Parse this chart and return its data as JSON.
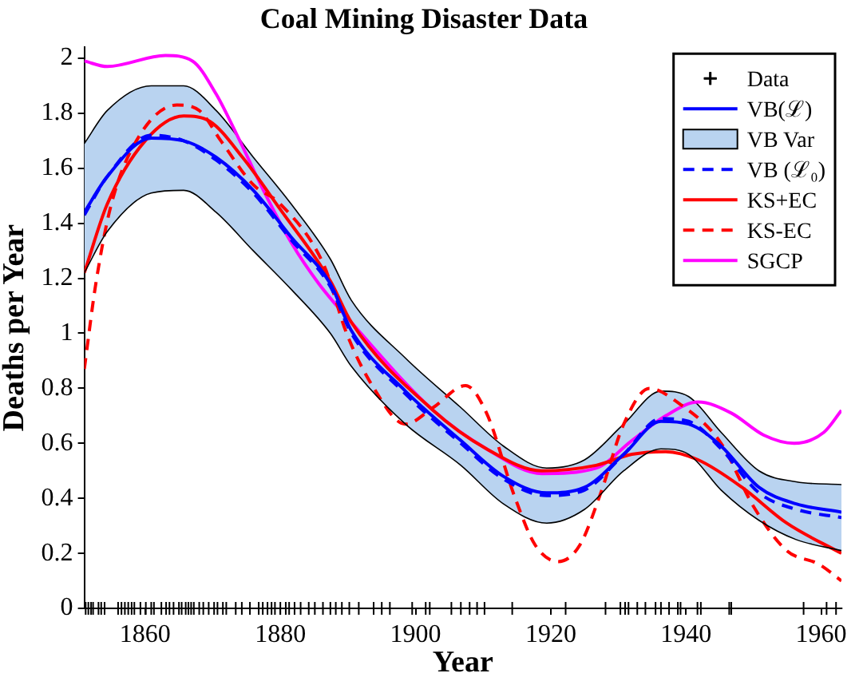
{
  "chart_data": {
    "type": "line",
    "title": "Coal Mining Disaster Data",
    "xlabel": "Year",
    "ylabel": "Deaths per Year",
    "xlim": [
      1851,
      1963
    ],
    "xticks": [
      1860,
      1880,
      1900,
      1920,
      1940,
      1960
    ],
    "ylim": [
      0,
      2.04
    ],
    "yticks": [
      0,
      0.2,
      0.4,
      0.6,
      0.8,
      1,
      1.2,
      1.4,
      1.6,
      1.8,
      2
    ],
    "legend": "top right",
    "grid": false,
    "series": [
      {
        "name": "Data",
        "type": "scatter",
        "marker": "cross",
        "color": "#000000",
        "x": [
          1851.2,
          1851.6,
          1852.0,
          1852.3,
          1853.1,
          1853.5,
          1854.0,
          1856.0,
          1856.5,
          1857.0,
          1857.5,
          1858.0,
          1858.4,
          1859.3,
          1860.1,
          1860.9,
          1861.3,
          1862.4,
          1863.1,
          1863.6,
          1864.2,
          1865.0,
          1865.4,
          1866.0,
          1866.4,
          1866.8,
          1867.2,
          1868.0,
          1868.6,
          1869.4,
          1870.2,
          1870.7,
          1871.5,
          1872.0,
          1873.4,
          1874.3,
          1875.5,
          1876.8,
          1877.4,
          1878.1,
          1878.7,
          1879.2,
          1880.0,
          1880.8,
          1881.3,
          1882.1,
          1883.0,
          1884.2,
          1885.1,
          1886.3,
          1887.4,
          1888.2,
          1889.1,
          1890.2,
          1891.6,
          1893.8,
          1895.0,
          1896.2,
          1899.5,
          1901.5,
          1902.1,
          1905.3,
          1906.7,
          1908.0,
          1909.1,
          1910.2,
          1914.3,
          1922.2,
          1928.1,
          1930.3,
          1931.0,
          1931.5,
          1932.8,
          1934.0,
          1935.5,
          1936.3,
          1937.5,
          1938.8,
          1939.2,
          1941.7,
          1942.2,
          1946.4,
          1946.7,
          1957.4,
          1960.8,
          1962.2
        ],
        "values": [
          0,
          0,
          0,
          0,
          0,
          0,
          0,
          0,
          0,
          0,
          0,
          0,
          0,
          0,
          0,
          0,
          0,
          0,
          0,
          0,
          0,
          0,
          0,
          0,
          0,
          0,
          0,
          0,
          0,
          0,
          0,
          0,
          0,
          0,
          0,
          0,
          0,
          0,
          0,
          0,
          0,
          0,
          0,
          0,
          0,
          0,
          0,
          0,
          0,
          0,
          0,
          0,
          0,
          0,
          0,
          0,
          0,
          0,
          0,
          0,
          0,
          0,
          0,
          0,
          0,
          0,
          0,
          0,
          0,
          0,
          0,
          0,
          0,
          0,
          0,
          0,
          0,
          0,
          0,
          0,
          0,
          0,
          0,
          0,
          0,
          0
        ]
      },
      {
        "name": "VB(ℒ)",
        "color": "#0000ff",
        "line_style": "solid",
        "x": [
          1851,
          1854.4,
          1860.9,
          1865.7,
          1870.5,
          1876,
          1881.6,
          1887.4,
          1890.5,
          1898.5,
          1906.7,
          1913,
          1919.4,
          1925,
          1930.8,
          1936.3,
          1940.4,
          1945.2,
          1950.8,
          1956.3,
          1963
        ],
        "values": [
          1.44,
          1.57,
          1.71,
          1.7,
          1.64,
          1.52,
          1.35,
          1.18,
          1.01,
          0.79,
          0.61,
          0.48,
          0.42,
          0.44,
          0.56,
          0.68,
          0.67,
          0.59,
          0.44,
          0.38,
          0.35
        ]
      },
      {
        "name": "VB Var",
        "type": "area",
        "color": "#b9d3f0",
        "x": [
          1851,
          1854.4,
          1860.9,
          1865.7,
          1870.5,
          1876,
          1881.6,
          1887.4,
          1890.5,
          1898.5,
          1906.7,
          1913,
          1919.4,
          1925,
          1930.8,
          1936.3,
          1940.4,
          1945.2,
          1950.8,
          1956.3,
          1963
        ],
        "values": [
          1.69,
          1.81,
          1.9,
          1.9,
          1.81,
          1.64,
          1.47,
          1.27,
          1.12,
          0.91,
          0.73,
          0.59,
          0.51,
          0.54,
          0.67,
          0.79,
          0.77,
          0.64,
          0.5,
          0.46,
          0.45
        ]
      },
      {
        "type": "line",
        "color": "#000000",
        "line_style": "solid",
        "x": [
          1851,
          1854.4,
          1860.9,
          1865.7,
          1870.5,
          1876,
          1881.6,
          1887.4,
          1890.5,
          1898.5,
          1906.7,
          1913,
          1919.4,
          1925,
          1930.8,
          1936.3,
          1940.4,
          1945.2,
          1950.8,
          1956.3,
          1963
        ],
        "values": [
          1.22,
          1.37,
          1.51,
          1.52,
          1.44,
          1.3,
          1.16,
          1.0,
          0.88,
          0.67,
          0.52,
          0.38,
          0.31,
          0.36,
          0.5,
          0.58,
          0.56,
          0.43,
          0.32,
          0.25,
          0.21
        ]
      },
      {
        "name": "VB (ℒ₀)",
        "color": "#0000ff",
        "line_style": "dashed",
        "x": [
          1851,
          1854.4,
          1860.9,
          1865.7,
          1870.5,
          1876,
          1881.6,
          1887.4,
          1890.5,
          1898.5,
          1906.7,
          1913,
          1919.4,
          1925,
          1930.8,
          1936.3,
          1940.4,
          1945.2,
          1950.8,
          1956.3,
          1963
        ],
        "values": [
          1.43,
          1.57,
          1.72,
          1.7,
          1.63,
          1.51,
          1.34,
          1.17,
          1.0,
          0.78,
          0.6,
          0.47,
          0.41,
          0.43,
          0.56,
          0.69,
          0.68,
          0.58,
          0.42,
          0.36,
          0.33
        ]
      },
      {
        "name": "KS+EC",
        "color": "#ff0000",
        "line_style": "solid",
        "x": [
          1851,
          1854.4,
          1860,
          1865.7,
          1869.6,
          1874.4,
          1880,
          1887.4,
          1890.5,
          1902.6,
          1910.5,
          1918.7,
          1926.7,
          1932,
          1937,
          1941.8,
          1948.3,
          1954.9,
          1963
        ],
        "values": [
          1.22,
          1.47,
          1.7,
          1.79,
          1.77,
          1.64,
          1.45,
          1.19,
          1.04,
          0.72,
          0.58,
          0.5,
          0.52,
          0.56,
          0.57,
          0.54,
          0.44,
          0.31,
          0.2
        ]
      },
      {
        "name": "KS-EC",
        "color": "#ff0000",
        "line_style": "dashed",
        "x": [
          1851,
          1852.7,
          1855,
          1859.2,
          1864.7,
          1868,
          1871.2,
          1876,
          1880,
          1886.4,
          1889.8,
          1893.6,
          1898.5,
          1902.6,
          1907.4,
          1910.5,
          1914.6,
          1917.7,
          1921.1,
          1924.3,
          1927.4,
          1930.8,
          1934.6,
          1938.7,
          1945.2,
          1950,
          1954.9,
          1959.7,
          1963
        ],
        "values": [
          0.87,
          1.18,
          1.47,
          1.72,
          1.83,
          1.81,
          1.7,
          1.54,
          1.47,
          1.25,
          1.0,
          0.81,
          0.67,
          0.73,
          0.81,
          0.71,
          0.41,
          0.23,
          0.17,
          0.23,
          0.42,
          0.67,
          0.8,
          0.75,
          0.6,
          0.37,
          0.21,
          0.16,
          0.1
        ]
      },
      {
        "name": "SGCP",
        "color": "#ff00ff",
        "line_style": "solid",
        "x": [
          1851,
          1854.4,
          1863,
          1867,
          1870.5,
          1873.6,
          1877.7,
          1881.6,
          1885.7,
          1890.5,
          1902.6,
          1910.5,
          1918.7,
          1926.7,
          1932,
          1937,
          1941.8,
          1946.7,
          1951.5,
          1956,
          1960.4,
          1963
        ],
        "values": [
          1.99,
          1.97,
          2.01,
          1.99,
          1.87,
          1.72,
          1.51,
          1.33,
          1.18,
          1.04,
          0.72,
          0.58,
          0.49,
          0.51,
          0.61,
          0.7,
          0.75,
          0.71,
          0.63,
          0.6,
          0.64,
          0.72
        ]
      }
    ]
  }
}
